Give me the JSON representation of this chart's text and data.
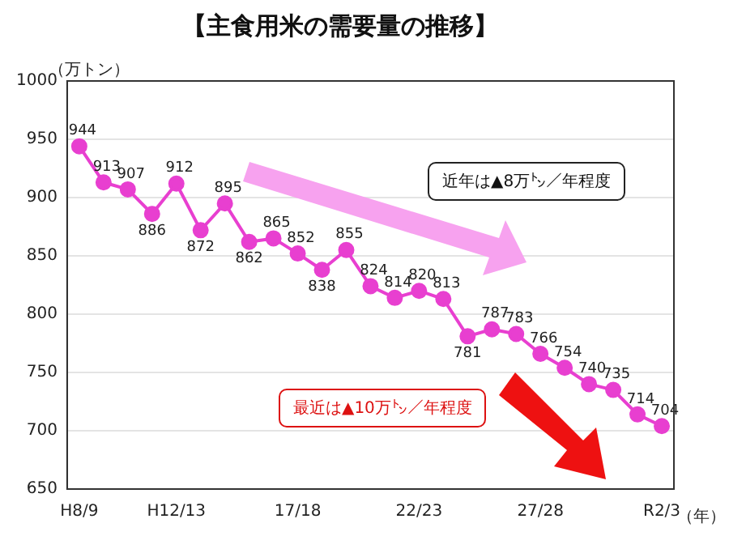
{
  "chart_data": {
    "type": "line",
    "title": "【主食用米の需要量の推移】",
    "ylabel": "（万トン）",
    "xlabel": "（年）",
    "categories": [
      "H8/9",
      null,
      null,
      null,
      "H12/13",
      null,
      null,
      null,
      null,
      "17/18",
      null,
      null,
      null,
      null,
      "22/23",
      null,
      null,
      null,
      null,
      "27/28",
      null,
      null,
      null,
      null,
      "R2/3"
    ],
    "series": [
      {
        "color": "#e83fd0",
        "values": [
          944,
          913,
          907,
          886,
          912,
          872,
          895,
          862,
          865,
          852,
          838,
          855,
          824,
          814,
          820,
          813,
          781,
          787,
          783,
          766,
          754,
          740,
          735,
          714,
          704
        ]
      }
    ],
    "ylim": [
      650,
      1000
    ],
    "yticks": [
      650,
      700,
      750,
      800,
      850,
      900,
      950,
      1000
    ],
    "grid": "y",
    "marker": "circle",
    "data_labels": true,
    "legend": false,
    "annotations": [
      "近年は▲8万㌧／年程度",
      "最近は▲10万㌧／年程度"
    ]
  }
}
